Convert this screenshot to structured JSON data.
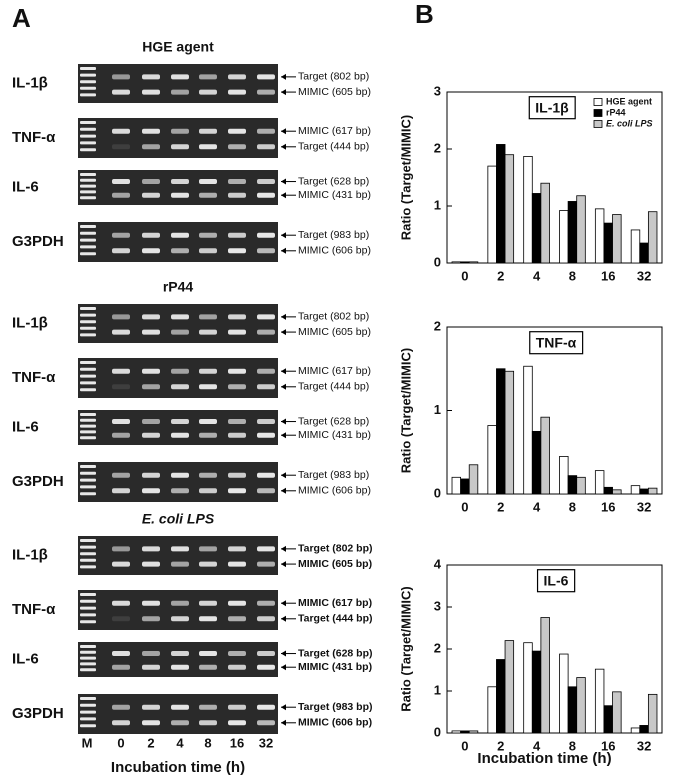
{
  "panel_a": {
    "label": "A",
    "sections": [
      {
        "title": "HGE agent",
        "gels": [
          {
            "gene": "IL-1β",
            "bands": [
              "Target (802 bp)",
              "MIMIC (605 bp)"
            ]
          },
          {
            "gene": "TNF-α",
            "bands": [
              "MIMIC (617 bp)",
              "Target (444 bp)"
            ]
          },
          {
            "gene": "IL-6",
            "bands": [
              "Target (628 bp)",
              "MIMIC (431 bp)"
            ]
          },
          {
            "gene": "G3PDH",
            "bands": [
              "Target (983 bp)",
              "MIMIC (606 bp)"
            ]
          }
        ]
      },
      {
        "title": "rP44",
        "gels": [
          {
            "gene": "IL-1β",
            "bands": [
              "Target (802 bp)",
              "MIMIC (605 bp)"
            ]
          },
          {
            "gene": "TNF-α",
            "bands": [
              "MIMIC (617 bp)",
              "Target (444 bp)"
            ]
          },
          {
            "gene": "IL-6",
            "bands": [
              "Target (628 bp)",
              "MIMIC (431 bp)"
            ]
          },
          {
            "gene": "G3PDH",
            "bands": [
              "Target (983 bp)",
              "MIMIC (606 bp)"
            ]
          }
        ]
      },
      {
        "title": "E. coli LPS",
        "gels": [
          {
            "gene": "IL-1β",
            "bands": [
              "Target (802 bp)",
              "MIMIC (605 bp)"
            ]
          },
          {
            "gene": "TNF-α",
            "bands": [
              "MIMIC (617 bp)",
              "Target (444 bp)"
            ]
          },
          {
            "gene": "IL-6",
            "bands": [
              "Target (628 bp)",
              "MIMIC (431 bp)"
            ]
          },
          {
            "gene": "G3PDH",
            "bands": [
              "Target (983 bp)",
              "MIMIC (606 bp)"
            ]
          }
        ]
      }
    ],
    "lanes": [
      "M",
      "0",
      "2",
      "4",
      "8",
      "16",
      "32"
    ],
    "xlabel": "Incubation time (h)"
  },
  "panel_b_label": "B",
  "chart_data": [
    {
      "type": "bar",
      "title": "IL-1β",
      "ylabel": "Ratio (Target/MIMIC)",
      "categories": [
        "0",
        "2",
        "4",
        "8",
        "16",
        "32"
      ],
      "series": [
        {
          "name": "HGE agent",
          "color": "#ffffff",
          "values": [
            0.02,
            1.7,
            1.87,
            0.92,
            0.95,
            0.58
          ]
        },
        {
          "name": "rP44",
          "color": "#000000",
          "values": [
            0.02,
            2.08,
            1.22,
            1.08,
            0.7,
            0.35
          ]
        },
        {
          "name": "E. coli LPS",
          "color": "#c8c8c8",
          "values": [
            0.02,
            1.9,
            1.4,
            1.18,
            0.85,
            0.9
          ]
        }
      ],
      "ylim": [
        0,
        3
      ],
      "yticks": [
        0,
        1,
        2,
        3
      ],
      "legend": "upper right"
    },
    {
      "type": "bar",
      "title": "TNF-α",
      "ylabel": "Ratio (Target/MIMIC)",
      "categories": [
        "0",
        "2",
        "4",
        "8",
        "16",
        "32"
      ],
      "series": [
        {
          "color": "#ffffff",
          "values": [
            0.2,
            0.82,
            1.53,
            0.45,
            0.28,
            0.1
          ]
        },
        {
          "color": "#000000",
          "values": [
            0.18,
            1.5,
            0.75,
            0.22,
            0.08,
            0.06
          ]
        },
        {
          "color": "#c8c8c8",
          "values": [
            0.35,
            1.47,
            0.92,
            0.2,
            0.05,
            0.07
          ]
        }
      ],
      "ylim": [
        0,
        2
      ],
      "yticks": [
        0,
        1,
        2
      ]
    },
    {
      "type": "bar",
      "title": "IL-6",
      "ylabel": "Ratio (Target/MIMIC)",
      "xlabel": "Incubation time (h)",
      "categories": [
        "0",
        "2",
        "4",
        "8",
        "16",
        "32"
      ],
      "series": [
        {
          "color": "#ffffff",
          "values": [
            0.05,
            1.1,
            2.15,
            1.88,
            1.52,
            0.12
          ]
        },
        {
          "color": "#000000",
          "values": [
            0.05,
            1.75,
            1.95,
            1.1,
            0.65,
            0.18
          ]
        },
        {
          "color": "#c8c8c8",
          "values": [
            0.05,
            2.2,
            2.75,
            1.32,
            0.98,
            0.92
          ]
        }
      ],
      "ylim": [
        0,
        4
      ],
      "yticks": [
        0,
        1,
        2,
        3,
        4
      ]
    }
  ]
}
